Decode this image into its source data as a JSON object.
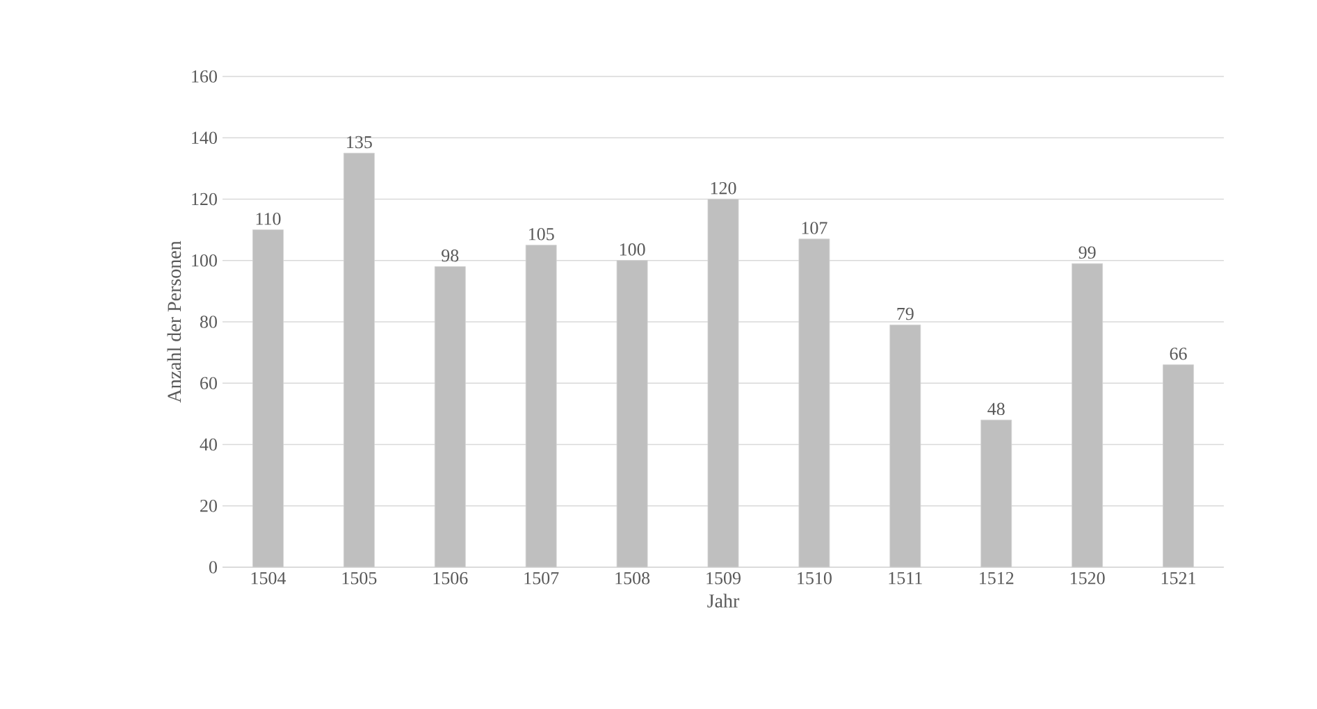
{
  "chart_data": {
    "type": "bar",
    "xlabel": "Jahr",
    "ylabel": "Anzahl der Personen",
    "categories": [
      "1504",
      "1505",
      "1506",
      "1507",
      "1508",
      "1509",
      "1510",
      "1511",
      "1512",
      "1520",
      "1521"
    ],
    "values": [
      110,
      135,
      98,
      105,
      100,
      120,
      107,
      79,
      48,
      99,
      66
    ],
    "color": "#bfbfbf",
    "ylim": [
      0,
      160
    ],
    "yticks": [
      0,
      20,
      40,
      60,
      80,
      100,
      120,
      140,
      160
    ],
    "grid": "y",
    "data_labels": true
  }
}
